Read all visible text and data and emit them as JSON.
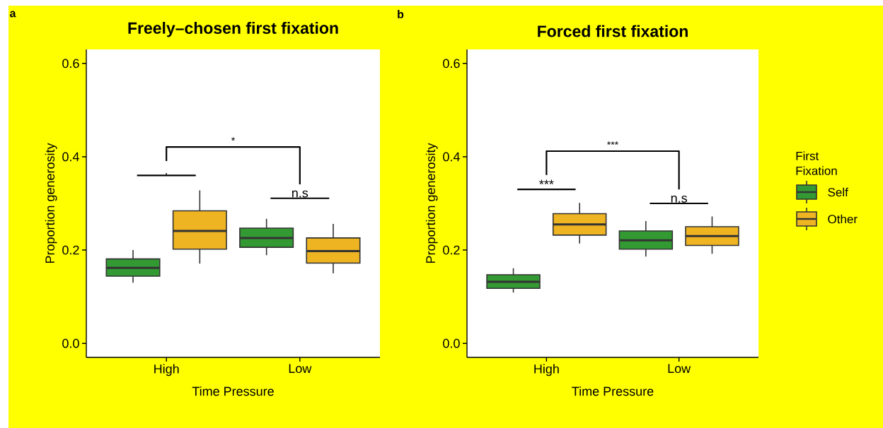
{
  "chart_data": [
    {
      "type": "box",
      "title": "Freely–chosen first fixation",
      "xlabel": "Time Pressure",
      "ylabel": "Proportion generosity",
      "categories": [
        "High",
        "Low"
      ],
      "ylim": [
        -0.03,
        0.63
      ],
      "yticks": [
        {
          "value": 0,
          "label": "0.0"
        },
        {
          "value": 0.2,
          "label": "0.2"
        },
        {
          "value": 0.4,
          "label": "0.4"
        },
        {
          "value": 0.6,
          "label": "0.6"
        }
      ],
      "grid": false,
      "legend": false,
      "series": [
        {
          "color": "#339933",
          "boxes": [
            {
              "low": 0.13,
              "q1": 0.144,
              "median": 0.162,
              "q3": 0.181,
              "high": 0.2
            },
            {
              "low": 0.189,
              "q1": 0.206,
              "median": 0.226,
              "q3": 0.247,
              "high": 0.267
            }
          ]
        },
        {
          "color": "#eeb422",
          "boxes": [
            {
              "low": 0.171,
              "q1": 0.202,
              "median": 0.241,
              "q3": 0.284,
              "high": 0.328
            },
            {
              "low": 0.15,
              "q1": 0.172,
              "median": 0.198,
              "q3": 0.226,
              "high": 0.256
            }
          ]
        }
      ],
      "annotations": [
        "a",
        ".",
        "n.s",
        "*"
      ]
    },
    {
      "type": "box",
      "title": "Forced first fixation",
      "xlabel": "Time Pressure",
      "ylabel": "Proportion generosity",
      "categories": [
        "High",
        "Low"
      ],
      "ylim": [
        -0.03,
        0.63
      ],
      "yticks": [
        {
          "value": 0,
          "label": "0.0"
        },
        {
          "value": 0.2,
          "label": "0.2"
        },
        {
          "value": 0.4,
          "label": "0.4"
        },
        {
          "value": 0.6,
          "label": "0.6"
        }
      ],
      "grid": false,
      "legend": "right",
      "legend_title": "First Fixation",
      "series": [
        {
          "name": "Self",
          "color": "#339933",
          "boxes": [
            {
              "low": 0.109,
              "q1": 0.118,
              "median": 0.132,
              "q3": 0.147,
              "high": 0.161
            },
            {
              "low": 0.186,
              "q1": 0.202,
              "median": 0.221,
              "q3": 0.241,
              "high": 0.262
            }
          ]
        },
        {
          "name": "Other",
          "color": "#eeb422",
          "boxes": [
            {
              "low": 0.214,
              "q1": 0.232,
              "median": 0.255,
              "q3": 0.278,
              "high": 0.301
            },
            {
              "low": 0.192,
              "q1": 0.21,
              "median": 0.23,
              "q3": 0.25,
              "high": 0.272
            }
          ]
        }
      ],
      "annotations": [
        "b",
        "***",
        "n.s",
        "***"
      ]
    }
  ]
}
